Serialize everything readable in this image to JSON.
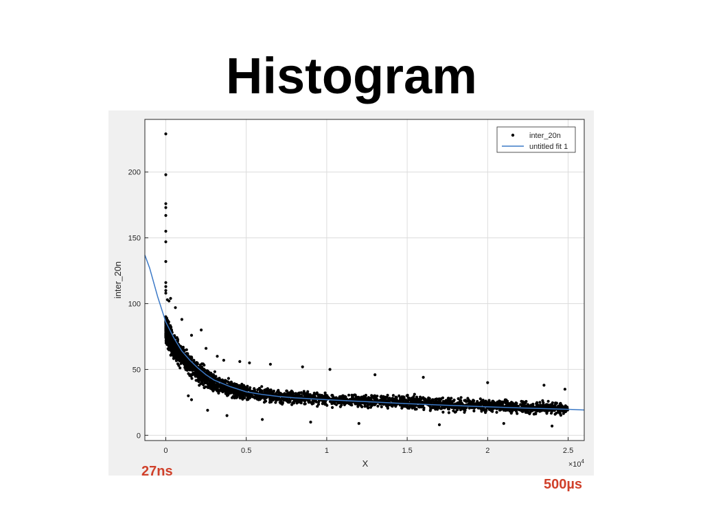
{
  "slide": {
    "title": "Histogram",
    "annotation_left": "27ns",
    "annotation_right": "500µs"
  },
  "colors": {
    "points": "#000000",
    "fit_line": "#3a78c6",
    "annotation": "#d0402a",
    "figure_bg": "#f0f0f0"
  },
  "chart_data": {
    "type": "scatter",
    "title": "",
    "xlabel": "X",
    "ylabel": "inter_20n",
    "x_exponent_label": "×10",
    "x_exponent_power": "4",
    "xlim": [
      -1300,
      26000
    ],
    "ylim": [
      -4,
      240
    ],
    "xticks": [
      0,
      5000,
      10000,
      15000,
      20000,
      25000
    ],
    "xtick_labels": [
      "0",
      "0.5",
      "1",
      "1.5",
      "2",
      "2.5"
    ],
    "yticks": [
      0,
      50,
      100,
      150,
      200
    ],
    "ytick_labels": [
      "0",
      "50",
      "100",
      "150",
      "200"
    ],
    "grid": true,
    "legend": {
      "placement": "top-right",
      "entries": [
        "inter_20n",
        "untitled fit 1"
      ]
    },
    "series": [
      {
        "name": "inter_20n",
        "kind": "points",
        "band_center": [
          [
            0,
            80
          ],
          [
            500,
            67
          ],
          [
            1000,
            60
          ],
          [
            2000,
            48
          ],
          [
            3000,
            40
          ],
          [
            4000,
            35
          ],
          [
            5000,
            32
          ],
          [
            7500,
            29
          ],
          [
            10000,
            27
          ],
          [
            12500,
            26
          ],
          [
            15000,
            25
          ],
          [
            17500,
            23.5
          ],
          [
            20000,
            22.5
          ],
          [
            22500,
            21
          ],
          [
            25000,
            20
          ]
        ],
        "band_halfwidth": [
          [
            0,
            16
          ],
          [
            1000,
            14
          ],
          [
            3000,
            11
          ],
          [
            5000,
            9
          ],
          [
            10000,
            8
          ],
          [
            25000,
            7
          ]
        ],
        "outliers": [
          [
            0,
            229
          ],
          [
            0,
            198
          ],
          [
            0,
            176
          ],
          [
            0,
            173
          ],
          [
            0,
            167
          ],
          [
            0,
            155
          ],
          [
            0,
            147
          ],
          [
            0,
            132
          ],
          [
            0,
            116
          ],
          [
            0,
            113
          ],
          [
            0,
            110
          ],
          [
            0,
            108
          ],
          [
            100,
            103
          ],
          [
            200,
            102
          ],
          [
            300,
            104
          ],
          [
            600,
            97
          ],
          [
            1000,
            88
          ],
          [
            2200,
            80
          ],
          [
            1600,
            76
          ],
          [
            2500,
            66
          ],
          [
            3200,
            60
          ],
          [
            3600,
            57
          ],
          [
            4600,
            56
          ],
          [
            5200,
            55
          ],
          [
            6500,
            54
          ],
          [
            8500,
            52
          ],
          [
            10200,
            50
          ],
          [
            13000,
            46
          ],
          [
            16000,
            44
          ],
          [
            20000,
            40
          ],
          [
            23500,
            38
          ],
          [
            24800,
            35
          ],
          [
            1400,
            30
          ],
          [
            1600,
            27
          ],
          [
            2600,
            19
          ],
          [
            3800,
            15
          ],
          [
            6000,
            12
          ],
          [
            9000,
            10
          ],
          [
            12000,
            9
          ],
          [
            17000,
            8
          ],
          [
            21000,
            9
          ],
          [
            24000,
            7
          ]
        ]
      },
      {
        "name": "untitled fit 1",
        "kind": "line",
        "points": [
          [
            -1300,
            137
          ],
          [
            -1000,
            127
          ],
          [
            -500,
            105
          ],
          [
            0,
            86
          ],
          [
            500,
            74
          ],
          [
            1000,
            64
          ],
          [
            1500,
            57
          ],
          [
            2000,
            51
          ],
          [
            2500,
            46
          ],
          [
            3000,
            42
          ],
          [
            4000,
            37
          ],
          [
            5000,
            33
          ],
          [
            6000,
            31
          ],
          [
            7000,
            29.5
          ],
          [
            8000,
            28.5
          ],
          [
            10000,
            27
          ],
          [
            12500,
            25.5
          ],
          [
            15000,
            24
          ],
          [
            17500,
            22.8
          ],
          [
            20000,
            21.6
          ],
          [
            22500,
            20.6
          ],
          [
            25000,
            19.7
          ],
          [
            26000,
            19.2
          ]
        ]
      }
    ]
  }
}
